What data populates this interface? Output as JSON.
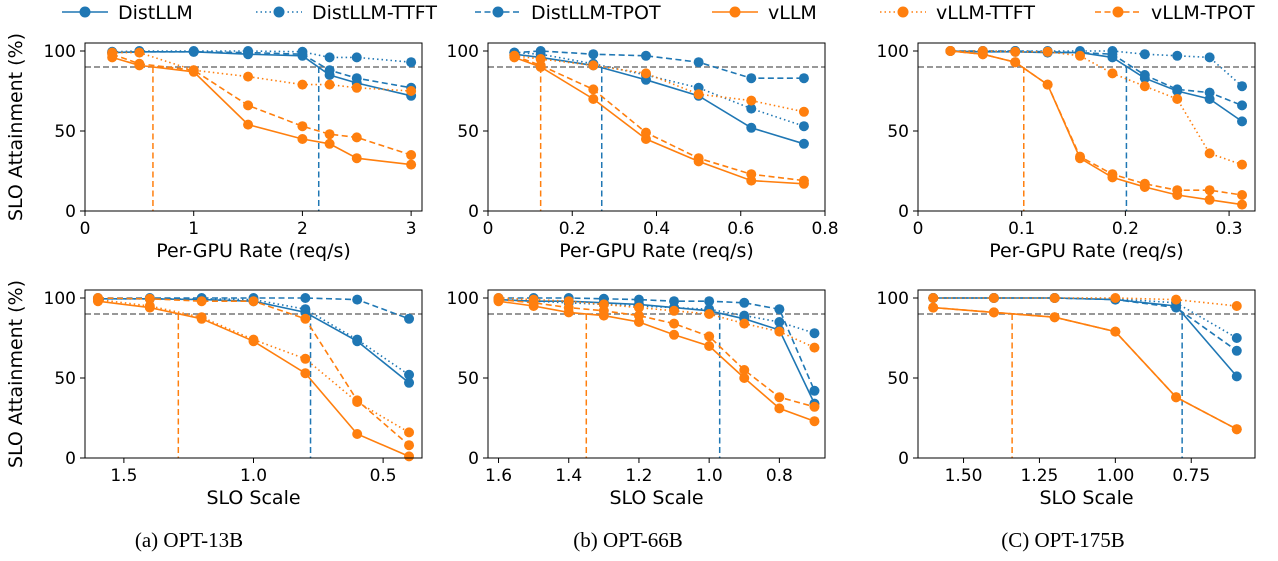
{
  "legend": [
    {
      "name": "DistLLM",
      "color": "#1f77b4",
      "dash": "solid"
    },
    {
      "name": "DistLLM-TTFT",
      "color": "#1f77b4",
      "dash": "dotted"
    },
    {
      "name": "DistLLM-TPOT",
      "color": "#1f77b4",
      "dash": "dashed"
    },
    {
      "name": "vLLM",
      "color": "#ff7f0e",
      "dash": "solid"
    },
    {
      "name": "vLLM-TTFT",
      "color": "#ff7f0e",
      "dash": "dotted"
    },
    {
      "name": "vLLM-TPOT",
      "color": "#ff7f0e",
      "dash": "dashed"
    }
  ],
  "captions": [
    "(a) OPT-13B",
    "(b) OPT-66B",
    "(C) OPT-175B"
  ],
  "chart_data": [
    {
      "type": "line",
      "ylabel": "SLO Attainment (%)",
      "xlabel": "Per-GPU Rate (req/s)",
      "xlim": [
        0,
        3.1
      ],
      "ylim": [
        0,
        105
      ],
      "xticks": [
        0,
        1,
        2,
        3
      ],
      "xtick_labels": [
        "0",
        "1",
        "2",
        "3"
      ],
      "yticks": [
        0,
        50,
        100
      ],
      "ytick_labels": [
        "0",
        "50",
        "100"
      ],
      "hline": 90,
      "vlines": [
        {
          "x": 0.625,
          "series": "vLLM"
        },
        {
          "x": 2.15,
          "series": "DistLLM"
        }
      ],
      "series": [
        {
          "name": "DistLLM",
          "x": [
            0.25,
            0.5,
            1,
            1.5,
            2,
            2.25,
            2.5,
            3
          ],
          "y": [
            99,
            99.5,
            99.5,
            98,
            97,
            85,
            80,
            72
          ]
        },
        {
          "name": "DistLLM-TTFT",
          "x": [
            0.25,
            0.5,
            1,
            1.5,
            2,
            2.25,
            2.5,
            3
          ],
          "y": [
            99.5,
            100,
            100,
            100,
            99.5,
            96,
            96,
            93
          ]
        },
        {
          "name": "DistLLM-TPOT",
          "x": [
            0.25,
            0.5,
            1,
            1.5,
            2,
            2.25,
            2.5,
            3
          ],
          "y": [
            99,
            99.5,
            99.5,
            99,
            98,
            88,
            83,
            77
          ]
        },
        {
          "name": "vLLM",
          "x": [
            0.25,
            0.5,
            1,
            1.5,
            2,
            2.25,
            2.5,
            3
          ],
          "y": [
            96,
            91,
            87,
            54,
            45,
            42,
            33,
            29
          ]
        },
        {
          "name": "vLLM-TTFT",
          "x": [
            0.25,
            0.5,
            1,
            1.5,
            2,
            2.25,
            2.5,
            3
          ],
          "y": [
            99,
            99,
            88,
            84,
            79,
            79,
            77,
            75
          ]
        },
        {
          "name": "vLLM-TPOT",
          "x": [
            0.25,
            0.5,
            1,
            1.5,
            2,
            2.25,
            2.5,
            3
          ],
          "y": [
            98,
            92,
            88,
            66,
            53,
            48,
            46,
            35
          ]
        }
      ]
    },
    {
      "type": "line",
      "ylabel": "",
      "xlabel": "Per-GPU Rate (req/s)",
      "xlim": [
        0,
        0.8
      ],
      "ylim": [
        0,
        105
      ],
      "xticks": [
        0,
        0.2,
        0.4,
        0.6,
        0.8
      ],
      "xtick_labels": [
        "0",
        "0.2",
        "0.4",
        "0.6",
        "0.8"
      ],
      "yticks": [
        0,
        50,
        100
      ],
      "ytick_labels": [
        "0",
        "50",
        "100"
      ],
      "hline": 90,
      "vlines": [
        {
          "x": 0.125,
          "series": "vLLM"
        },
        {
          "x": 0.27,
          "series": "DistLLM"
        }
      ],
      "series": [
        {
          "name": "DistLLM",
          "x": [
            0.0625,
            0.125,
            0.25,
            0.375,
            0.5,
            0.625,
            0.75
          ],
          "y": [
            98,
            96,
            91,
            82,
            72,
            52,
            42
          ]
        },
        {
          "name": "DistLLM-TTFT",
          "x": [
            0.0625,
            0.125,
            0.25,
            0.375,
            0.5,
            0.625,
            0.75
          ],
          "y": [
            99,
            98,
            92,
            85,
            77,
            64,
            53
          ]
        },
        {
          "name": "DistLLM-TPOT",
          "x": [
            0.0625,
            0.125,
            0.25,
            0.375,
            0.5,
            0.625,
            0.75
          ],
          "y": [
            99,
            100,
            98,
            97,
            93,
            83,
            83
          ]
        },
        {
          "name": "vLLM",
          "x": [
            0.0625,
            0.125,
            0.25,
            0.375,
            0.5,
            0.625,
            0.75
          ],
          "y": [
            96,
            90,
            70,
            45,
            31,
            19,
            17
          ]
        },
        {
          "name": "vLLM-TTFT",
          "x": [
            0.0625,
            0.125,
            0.25,
            0.375,
            0.5,
            0.625,
            0.75
          ],
          "y": [
            97,
            95,
            91,
            86,
            73,
            69,
            62
          ]
        },
        {
          "name": "vLLM-TPOT",
          "x": [
            0.0625,
            0.125,
            0.25,
            0.375,
            0.5,
            0.625,
            0.75
          ],
          "y": [
            97,
            91,
            76,
            49,
            33,
            23,
            19
          ]
        }
      ]
    },
    {
      "type": "line",
      "ylabel": "",
      "xlabel": "Per-GPU Rate (req/s)",
      "xlim": [
        0,
        0.325
      ],
      "ylim": [
        0,
        105
      ],
      "xticks": [
        0,
        0.1,
        0.2,
        0.3
      ],
      "xtick_labels": [
        "0",
        "0.1",
        "0.2",
        "0.3"
      ],
      "yticks": [
        0,
        50,
        100
      ],
      "ytick_labels": [
        "0",
        "50",
        "100"
      ],
      "hline": 90,
      "vlines": [
        {
          "x": 0.102,
          "series": "vLLM"
        },
        {
          "x": 0.201,
          "series": "DistLLM"
        }
      ],
      "series": [
        {
          "name": "DistLLM",
          "x": [
            0.03125,
            0.0625,
            0.09375,
            0.125,
            0.15625,
            0.1875,
            0.21875,
            0.25,
            0.28125,
            0.3125
          ],
          "y": [
            100,
            99.5,
            99.5,
            99,
            99,
            96,
            83,
            75,
            70,
            56
          ]
        },
        {
          "name": "DistLLM-TTFT",
          "x": [
            0.03125,
            0.0625,
            0.09375,
            0.125,
            0.15625,
            0.1875,
            0.21875,
            0.25,
            0.28125,
            0.3125
          ],
          "y": [
            100,
            100,
            100,
            100,
            100,
            100,
            98,
            97,
            96,
            78
          ]
        },
        {
          "name": "DistLLM-TPOT",
          "x": [
            0.03125,
            0.0625,
            0.09375,
            0.125,
            0.15625,
            0.1875,
            0.21875,
            0.25,
            0.28125,
            0.3125
          ],
          "y": [
            100,
            100,
            100,
            99.5,
            99,
            98,
            85,
            76,
            74,
            66
          ]
        },
        {
          "name": "vLLM",
          "x": [
            0.03125,
            0.0625,
            0.09375,
            0.125,
            0.15625,
            0.1875,
            0.21875,
            0.25,
            0.28125,
            0.3125
          ],
          "y": [
            100,
            98,
            93,
            79,
            33,
            21,
            15,
            10,
            7,
            4
          ]
        },
        {
          "name": "vLLM-TTFT",
          "x": [
            0.03125,
            0.0625,
            0.09375,
            0.125,
            0.15625,
            0.1875,
            0.21875,
            0.25,
            0.28125,
            0.3125
          ],
          "y": [
            100,
            100,
            99.5,
            99.5,
            97,
            86,
            78,
            70,
            36,
            29
          ]
        },
        {
          "name": "vLLM-TPOT",
          "x": [
            0.03125,
            0.0625,
            0.09375,
            0.125,
            0.15625,
            0.1875,
            0.21875,
            0.25,
            0.28125,
            0.3125
          ],
          "y": [
            100,
            98,
            93,
            79,
            34,
            23,
            17,
            13,
            13,
            10
          ]
        }
      ]
    },
    {
      "type": "line",
      "ylabel": "SLO Attainment (%)",
      "xlabel": "SLO Scale",
      "xlim": [
        1.65,
        0.35
      ],
      "ylim": [
        0,
        105
      ],
      "xticks": [
        1.5,
        1.0,
        0.5
      ],
      "xtick_labels": [
        "1.5",
        "1.0",
        "0.5"
      ],
      "yticks": [
        0,
        50,
        100
      ],
      "ytick_labels": [
        "0",
        "50",
        "100"
      ],
      "hline": 90,
      "vlines": [
        {
          "x": 1.29,
          "series": "vLLM"
        },
        {
          "x": 0.78,
          "series": "DistLLM"
        }
      ],
      "series": [
        {
          "name": "DistLLM",
          "x": [
            1.6,
            1.4,
            1.2,
            1.0,
            0.8,
            0.6,
            0.4
          ],
          "y": [
            99.5,
            99.5,
            99,
            98,
            91,
            73,
            47
          ]
        },
        {
          "name": "DistLLM-TTFT",
          "x": [
            1.6,
            1.4,
            1.2,
            1.0,
            0.8,
            0.6,
            0.4
          ],
          "y": [
            99.5,
            99.5,
            99.5,
            99,
            93,
            74,
            52
          ]
        },
        {
          "name": "DistLLM-TPOT",
          "x": [
            1.6,
            1.4,
            1.2,
            1.0,
            0.8,
            0.6,
            0.4
          ],
          "y": [
            100,
            100,
            100,
            100,
            100,
            99,
            87
          ]
        },
        {
          "name": "vLLM",
          "x": [
            1.6,
            1.4,
            1.2,
            1.0,
            0.8,
            0.6,
            0.4
          ],
          "y": [
            98,
            94,
            87,
            73,
            53,
            15,
            1
          ]
        },
        {
          "name": "vLLM-TTFT",
          "x": [
            1.6,
            1.4,
            1.2,
            1.0,
            0.8,
            0.6,
            0.4
          ],
          "y": [
            99,
            95,
            88,
            74,
            62,
            35,
            16
          ]
        },
        {
          "name": "vLLM-TPOT",
          "x": [
            1.6,
            1.4,
            1.2,
            1.0,
            0.8,
            0.6,
            0.4
          ],
          "y": [
            100,
            99.5,
            98,
            98,
            87,
            36,
            8
          ]
        }
      ]
    },
    {
      "type": "line",
      "ylabel": "",
      "xlabel": "SLO Scale",
      "xlim": [
        1.63,
        0.67
      ],
      "ylim": [
        0,
        105
      ],
      "xticks": [
        1.6,
        1.4,
        1.2,
        1.0,
        0.8
      ],
      "xtick_labels": [
        "1.6",
        "1.4",
        "1.2",
        "1.0",
        "0.8"
      ],
      "yticks": [
        0,
        50,
        100
      ],
      "ytick_labels": [
        "0",
        "50",
        "100"
      ],
      "hline": 90,
      "vlines": [
        {
          "x": 1.35,
          "series": "vLLM"
        },
        {
          "x": 0.97,
          "series": "DistLLM"
        }
      ],
      "series": [
        {
          "name": "DistLLM",
          "x": [
            1.6,
            1.5,
            1.4,
            1.3,
            1.2,
            1.1,
            1.0,
            0.9,
            0.8,
            0.7
          ],
          "y": [
            99,
            98,
            98,
            97,
            96,
            94,
            92,
            87,
            80,
            34
          ]
        },
        {
          "name": "DistLLM-TTFT",
          "x": [
            1.6,
            1.5,
            1.4,
            1.3,
            1.2,
            1.1,
            1.0,
            0.9,
            0.8,
            0.7
          ],
          "y": [
            99,
            98,
            97,
            96,
            95,
            94,
            93,
            89,
            85,
            78
          ]
        },
        {
          "name": "DistLLM-TPOT",
          "x": [
            1.6,
            1.5,
            1.4,
            1.3,
            1.2,
            1.1,
            1.0,
            0.9,
            0.8,
            0.7
          ],
          "y": [
            100,
            100,
            100,
            99.5,
            99,
            98,
            98,
            97,
            93,
            42
          ]
        },
        {
          "name": "vLLM",
          "x": [
            1.6,
            1.5,
            1.4,
            1.3,
            1.2,
            1.1,
            1.0,
            0.9,
            0.8,
            0.7
          ],
          "y": [
            98,
            95,
            91,
            89,
            85,
            77,
            70,
            50,
            31,
            23
          ]
        },
        {
          "name": "vLLM-TTFT",
          "x": [
            1.6,
            1.5,
            1.4,
            1.3,
            1.2,
            1.1,
            1.0,
            0.9,
            0.8,
            0.7
          ],
          "y": [
            100,
            99,
            98,
            96,
            94,
            92,
            90,
            84,
            79,
            69
          ]
        },
        {
          "name": "vLLM-TPOT",
          "x": [
            1.6,
            1.5,
            1.4,
            1.3,
            1.2,
            1.1,
            1.0,
            0.9,
            0.8,
            0.7
          ],
          "y": [
            99,
            97,
            94,
            92,
            89,
            84,
            76,
            55,
            38,
            32
          ]
        }
      ]
    },
    {
      "type": "line",
      "ylabel": "",
      "xlabel": "SLO Scale",
      "xlim": [
        1.65,
        0.54
      ],
      "ylim": [
        0,
        105
      ],
      "xticks": [
        1.5,
        1.25,
        1.0,
        0.75
      ],
      "xtick_labels": [
        "1.50",
        "1.25",
        "1.00",
        "0.75"
      ],
      "yticks": [
        0,
        50,
        100
      ],
      "ytick_labels": [
        "0",
        "50",
        "100"
      ],
      "hline": 90,
      "vlines": [
        {
          "x": 1.34,
          "series": "vLLM"
        },
        {
          "x": 0.78,
          "series": "DistLLM"
        }
      ],
      "series": [
        {
          "name": "DistLLM",
          "x": [
            1.6,
            1.4,
            1.2,
            1.0,
            0.8,
            0.6
          ],
          "y": [
            100,
            100,
            100,
            99,
            95,
            51
          ]
        },
        {
          "name": "DistLLM-TTFT",
          "x": [
            1.6,
            1.4,
            1.2,
            1.0,
            0.8,
            0.6
          ],
          "y": [
            100,
            100,
            100,
            99.5,
            97,
            75
          ]
        },
        {
          "name": "DistLLM-TPOT",
          "x": [
            1.6,
            1.4,
            1.2,
            1.0,
            0.8,
            0.6
          ],
          "y": [
            100,
            100,
            100,
            99,
            94,
            67
          ]
        },
        {
          "name": "vLLM",
          "x": [
            1.6,
            1.4,
            1.2,
            1.0,
            0.8,
            0.6
          ],
          "y": [
            94,
            91,
            88,
            79,
            38,
            18
          ]
        },
        {
          "name": "vLLM-TTFT",
          "x": [
            1.6,
            1.4,
            1.2,
            1.0,
            0.8,
            0.6
          ],
          "y": [
            100,
            100,
            100,
            100,
            99,
            95
          ]
        },
        {
          "name": "vLLM-TPOT",
          "x": [
            1.6,
            1.4,
            1.2,
            1.0,
            0.8,
            0.6
          ],
          "y": [
            94,
            91,
            88,
            79,
            38,
            18
          ]
        }
      ]
    }
  ]
}
